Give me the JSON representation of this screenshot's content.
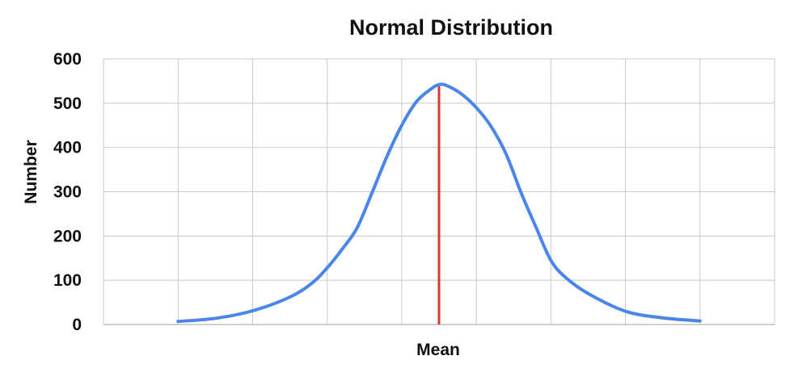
{
  "chart_data": {
    "type": "line",
    "title": "Normal Distribution",
    "xlabel": "Mean",
    "ylabel": "Number",
    "xlim": [
      0,
      9
    ],
    "ylim": [
      0,
      600
    ],
    "y_ticks": [
      "0",
      "100",
      "200",
      "300",
      "400",
      "500",
      "600"
    ],
    "x_gridlines": [
      1,
      2,
      3,
      4,
      5,
      6,
      7,
      8
    ],
    "grid": true,
    "legend": "none",
    "series": [
      {
        "color": "#4a86e8",
        "points": [
          {
            "x": 1.0,
            "y": 7
          },
          {
            "x": 1.5,
            "y": 14
          },
          {
            "x": 2.0,
            "y": 31
          },
          {
            "x": 2.5,
            "y": 62
          },
          {
            "x": 2.8,
            "y": 94
          },
          {
            "x": 3.0,
            "y": 128
          },
          {
            "x": 3.2,
            "y": 170
          },
          {
            "x": 3.4,
            "y": 218
          },
          {
            "x": 3.6,
            "y": 297
          },
          {
            "x": 3.8,
            "y": 379
          },
          {
            "x": 4.0,
            "y": 450
          },
          {
            "x": 4.2,
            "y": 504
          },
          {
            "x": 4.4,
            "y": 533
          },
          {
            "x": 4.5,
            "y": 542
          },
          {
            "x": 4.6,
            "y": 540
          },
          {
            "x": 4.8,
            "y": 521
          },
          {
            "x": 5.0,
            "y": 490
          },
          {
            "x": 5.2,
            "y": 447
          },
          {
            "x": 5.4,
            "y": 385
          },
          {
            "x": 5.6,
            "y": 298
          },
          {
            "x": 5.8,
            "y": 220
          },
          {
            "x": 6.0,
            "y": 145
          },
          {
            "x": 6.2,
            "y": 106
          },
          {
            "x": 6.5,
            "y": 70
          },
          {
            "x": 7.0,
            "y": 30
          },
          {
            "x": 7.5,
            "y": 15
          },
          {
            "x": 8.0,
            "y": 8
          }
        ]
      }
    ],
    "mean_line": {
      "x": 4.5,
      "y_top": 540,
      "color": "#d93b2b"
    }
  }
}
